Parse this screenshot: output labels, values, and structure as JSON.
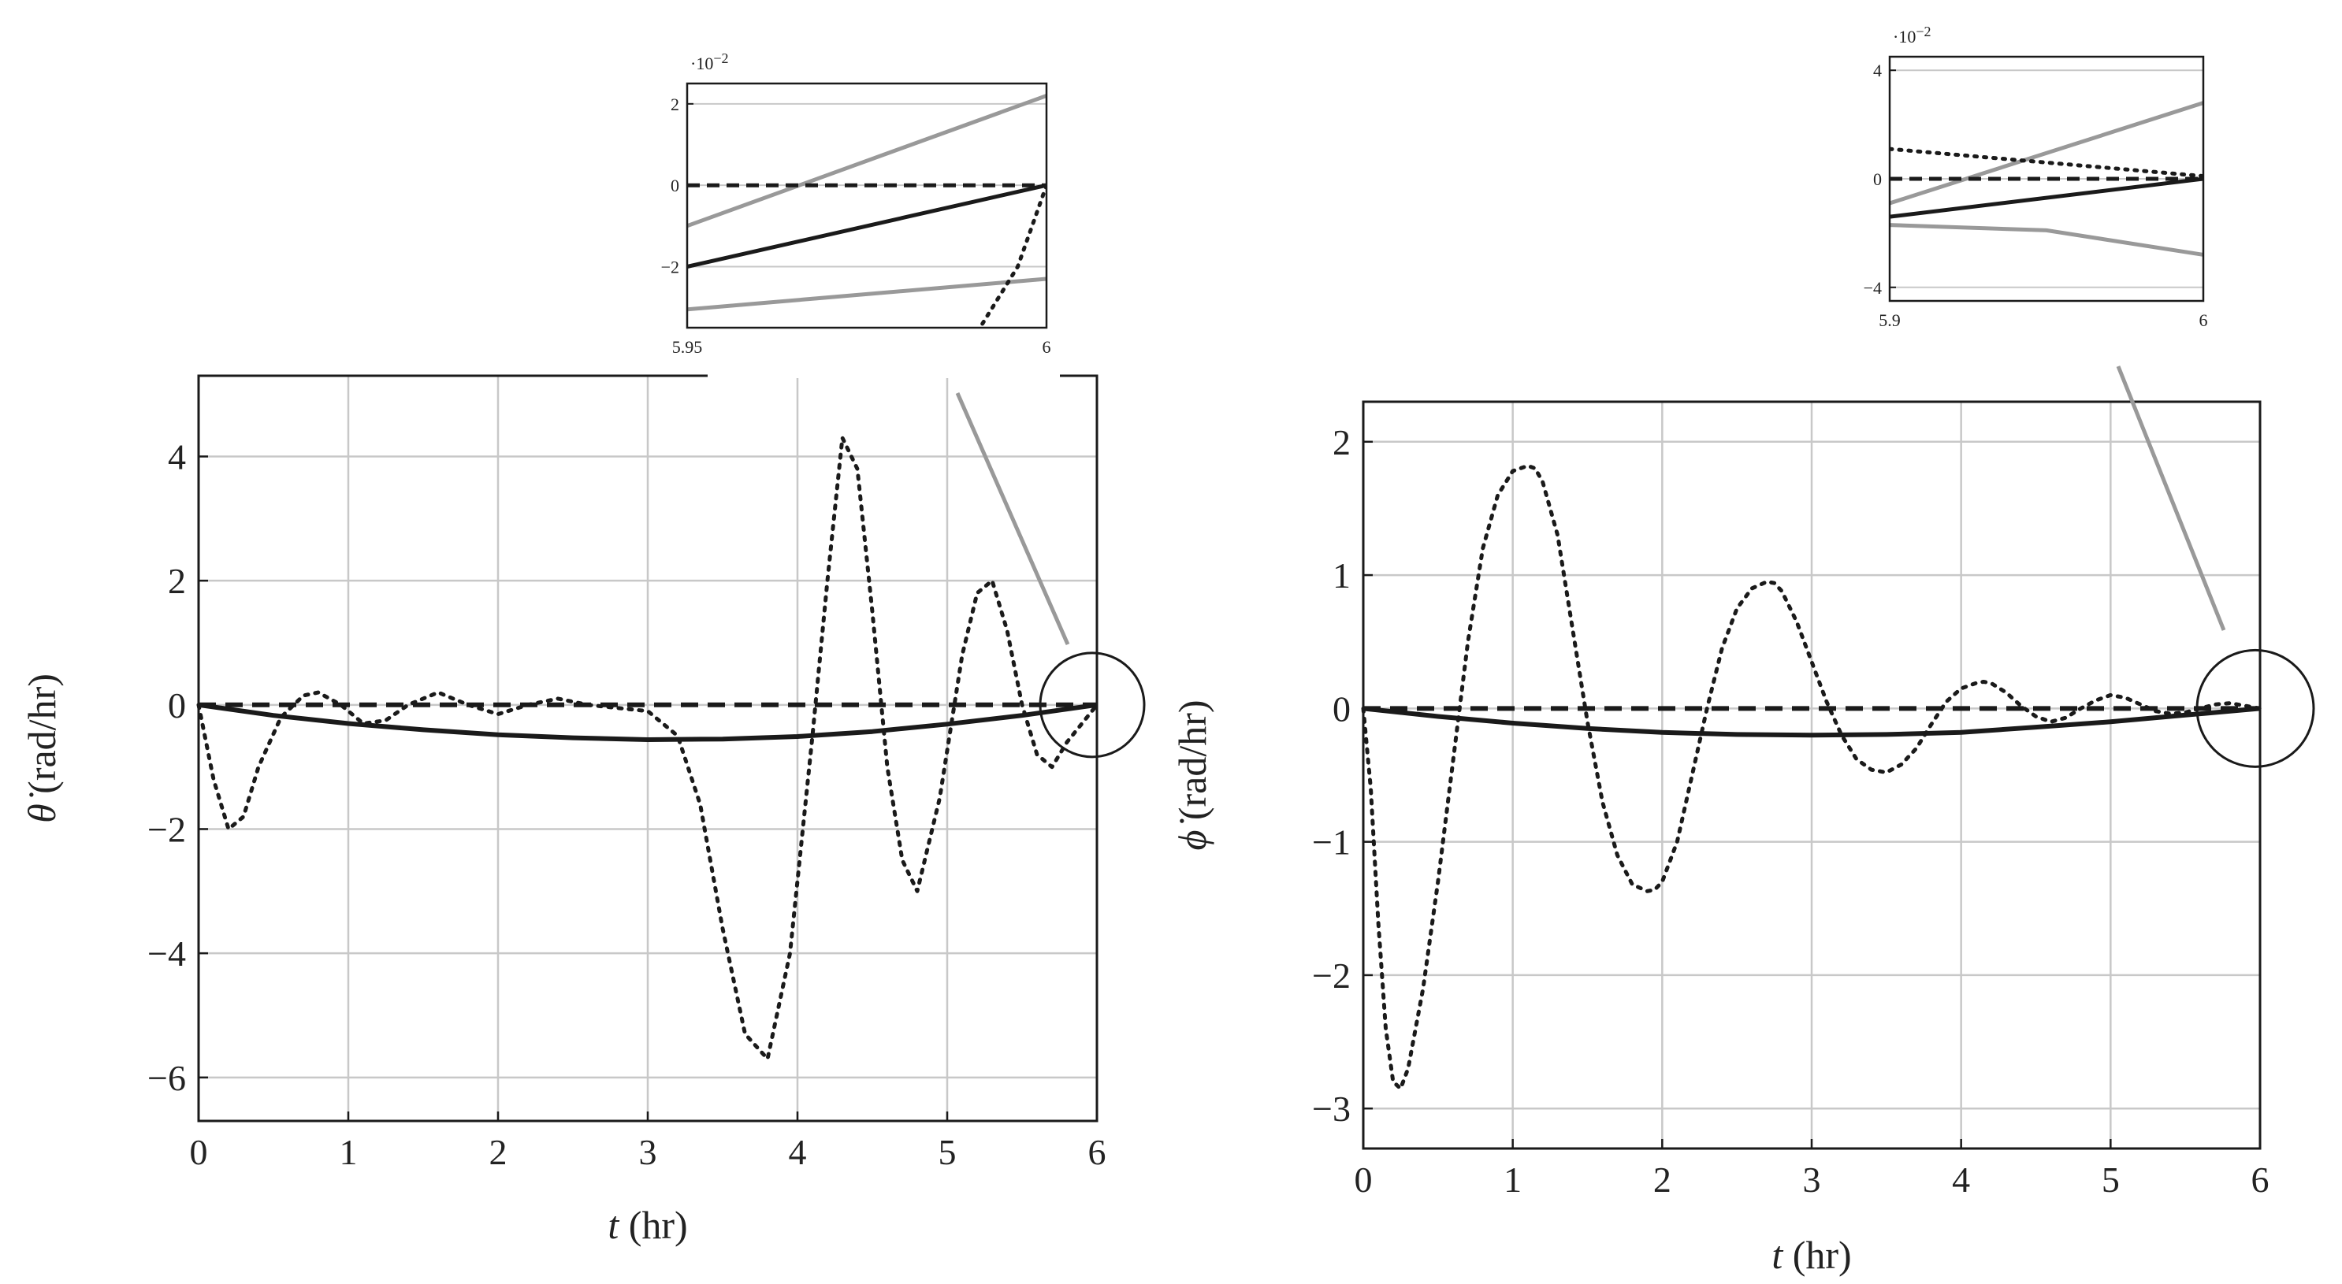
{
  "chart_data": [
    {
      "id": "theta",
      "type": "line",
      "xlabel": {
        "italic": "t",
        "rest": " (hr)"
      },
      "ylabel": {
        "symbol": "θ̇",
        "rest": " (rad/hr)"
      },
      "xlim": [
        0,
        6
      ],
      "ylim": [
        -6.7,
        5.3
      ],
      "xticks": [
        0,
        1,
        2,
        3,
        4,
        5,
        6
      ],
      "yticks": [
        -6,
        -4,
        -2,
        0,
        2,
        4
      ],
      "ytick_labels": [
        "−6",
        "−4",
        "−2",
        "0",
        "2",
        "4"
      ],
      "grid": true,
      "series": [
        {
          "style": "dashed",
          "color": "#1a1a1a",
          "x": [
            0,
            6
          ],
          "y": [
            0,
            0
          ]
        },
        {
          "style": "solid",
          "color": "#1a1a1a",
          "x": [
            0,
            0.5,
            1,
            1.5,
            2,
            2.5,
            3,
            3.5,
            4,
            4.5,
            5,
            5.5,
            6
          ],
          "y": [
            0,
            -0.17,
            -0.3,
            -0.4,
            -0.48,
            -0.53,
            -0.56,
            -0.55,
            -0.51,
            -0.43,
            -0.31,
            -0.17,
            0
          ]
        },
        {
          "style": "dotted",
          "color": "#1a1a1a",
          "x": [
            0,
            0.1,
            0.2,
            0.3,
            0.4,
            0.55,
            0.7,
            0.8,
            0.95,
            1.1,
            1.25,
            1.4,
            1.6,
            1.8,
            2.0,
            2.2,
            2.4,
            2.6,
            2.8,
            3.0,
            3.2,
            3.35,
            3.5,
            3.65,
            3.8,
            3.95,
            4.1,
            4.2,
            4.3,
            4.4,
            4.5,
            4.6,
            4.7,
            4.8,
            4.95,
            5.1,
            5.2,
            5.3,
            5.4,
            5.5,
            5.6,
            5.7,
            5.8,
            5.9,
            6.0
          ],
          "y": [
            0,
            -1.2,
            -2.0,
            -1.8,
            -1.0,
            -0.2,
            0.15,
            0.2,
            0.0,
            -0.3,
            -0.25,
            0.0,
            0.2,
            0.0,
            -0.15,
            0.0,
            0.1,
            0.0,
            -0.05,
            -0.1,
            -0.5,
            -1.6,
            -3.6,
            -5.3,
            -5.7,
            -4.0,
            -0.5,
            2.0,
            4.3,
            3.8,
            1.5,
            -1.0,
            -2.5,
            -3.0,
            -1.5,
            0.8,
            1.8,
            2.0,
            1.2,
            0.0,
            -0.8,
            -1.0,
            -0.6,
            -0.3,
            0.0
          ]
        }
      ],
      "inset": {
        "xlim": [
          5.95,
          6
        ],
        "ylim": [
          -3.5,
          2.5
        ],
        "xtick_labels": [
          "5.95",
          "6"
        ],
        "yticks": [
          -2,
          0,
          2
        ],
        "ytick_labels": [
          "−2",
          "0",
          "2"
        ],
        "exponent_label": "·10",
        "exponent_power": "−2",
        "series": [
          {
            "style": "solid",
            "color": "#999999",
            "x": [
              5.95,
              6
            ],
            "y": [
              -1.0,
              2.2
            ]
          },
          {
            "style": "dashed",
            "color": "#1a1a1a",
            "x": [
              5.95,
              6
            ],
            "y": [
              0,
              0
            ]
          },
          {
            "style": "solid",
            "color": "#1a1a1a",
            "x": [
              5.95,
              6
            ],
            "y": [
              -2.0,
              0
            ]
          },
          {
            "style": "solid",
            "color": "#999999",
            "x": [
              5.95,
              6
            ],
            "y": [
              -3.05,
              -2.3
            ]
          },
          {
            "style": "dotted",
            "color": "#1a1a1a",
            "x": [
              5.9904,
              5.996,
              6.0
            ],
            "y": [
              -3.6,
              -2.0,
              0
            ]
          }
        ]
      }
    },
    {
      "id": "phi",
      "type": "line",
      "xlabel": {
        "italic": "t",
        "rest": " (hr)"
      },
      "ylabel": {
        "symbol": "ϕ̇",
        "rest": " (rad/hr)"
      },
      "xlim": [
        0,
        6
      ],
      "ylim": [
        -3.3,
        2.3
      ],
      "xticks": [
        0,
        1,
        2,
        3,
        4,
        5,
        6
      ],
      "yticks": [
        -3,
        -2,
        -1,
        0,
        1,
        2
      ],
      "ytick_labels": [
        "−3",
        "−2",
        "−1",
        "0",
        "1",
        "2"
      ],
      "grid": true,
      "series": [
        {
          "style": "dashed",
          "color": "#1a1a1a",
          "x": [
            0,
            6
          ],
          "y": [
            0,
            0
          ]
        },
        {
          "style": "solid",
          "color": "#1a1a1a",
          "x": [
            0,
            0.5,
            1,
            1.5,
            2,
            2.5,
            3,
            3.5,
            4,
            4.5,
            5,
            5.5,
            6
          ],
          "y": [
            0,
            -0.06,
            -0.11,
            -0.15,
            -0.18,
            -0.195,
            -0.2,
            -0.195,
            -0.18,
            -0.14,
            -0.1,
            -0.05,
            0
          ]
        },
        {
          "style": "dotted",
          "color": "#1a1a1a",
          "x": [
            0,
            0.05,
            0.1,
            0.15,
            0.2,
            0.25,
            0.3,
            0.4,
            0.5,
            0.6,
            0.7,
            0.8,
            0.9,
            1.0,
            1.1,
            1.15,
            1.2,
            1.3,
            1.4,
            1.5,
            1.6,
            1.7,
            1.8,
            1.9,
            1.95,
            2.0,
            2.1,
            2.2,
            2.3,
            2.4,
            2.5,
            2.6,
            2.7,
            2.75,
            2.8,
            2.9,
            3.0,
            3.1,
            3.2,
            3.3,
            3.4,
            3.5,
            3.6,
            3.7,
            3.8,
            3.9,
            4.0,
            4.1,
            4.15,
            4.2,
            4.3,
            4.4,
            4.5,
            4.6,
            4.7,
            4.8,
            4.9,
            5.0,
            5.1,
            5.2,
            5.3,
            5.4,
            5.5,
            5.6,
            5.7,
            5.8,
            5.9,
            6.0
          ],
          "y": [
            0,
            -0.6,
            -1.6,
            -2.4,
            -2.8,
            -2.85,
            -2.7,
            -2.1,
            -1.3,
            -0.4,
            0.5,
            1.2,
            1.6,
            1.78,
            1.82,
            1.8,
            1.7,
            1.3,
            0.6,
            -0.1,
            -0.7,
            -1.1,
            -1.32,
            -1.37,
            -1.36,
            -1.3,
            -1.0,
            -0.5,
            0.0,
            0.45,
            0.75,
            0.9,
            0.95,
            0.94,
            0.88,
            0.65,
            0.35,
            0.05,
            -0.2,
            -0.38,
            -0.46,
            -0.48,
            -0.42,
            -0.3,
            -0.12,
            0.05,
            0.15,
            0.19,
            0.2,
            0.19,
            0.12,
            0.02,
            -0.06,
            -0.1,
            -0.07,
            0.0,
            0.06,
            0.1,
            0.08,
            0.03,
            -0.02,
            -0.04,
            -0.03,
            0.0,
            0.03,
            0.04,
            0.02,
            0.0
          ]
        }
      ],
      "inset": {
        "xlim": [
          5.9,
          6
        ],
        "ylim": [
          -4.5,
          4.5
        ],
        "xtick_labels": [
          "5.9",
          "6"
        ],
        "yticks": [
          -4,
          0,
          4
        ],
        "ytick_labels": [
          "−4",
          "0",
          "4"
        ],
        "exponent_label": "·10",
        "exponent_power": "−2",
        "series": [
          {
            "style": "solid",
            "color": "#999999",
            "x": [
              5.9,
              6
            ],
            "y": [
              -0.9,
              2.8
            ]
          },
          {
            "style": "dotted",
            "color": "#1a1a1a",
            "x": [
              5.9,
              6
            ],
            "y": [
              1.1,
              0.1
            ]
          },
          {
            "style": "dashed",
            "color": "#1a1a1a",
            "x": [
              5.9,
              6
            ],
            "y": [
              0,
              0
            ]
          },
          {
            "style": "solid",
            "color": "#1a1a1a",
            "x": [
              5.9,
              6
            ],
            "y": [
              -1.4,
              0
            ]
          },
          {
            "style": "solid",
            "color": "#999999",
            "x": [
              5.9,
              5.95,
              6
            ],
            "y": [
              -1.7,
              -1.9,
              -2.8
            ]
          }
        ]
      }
    }
  ]
}
